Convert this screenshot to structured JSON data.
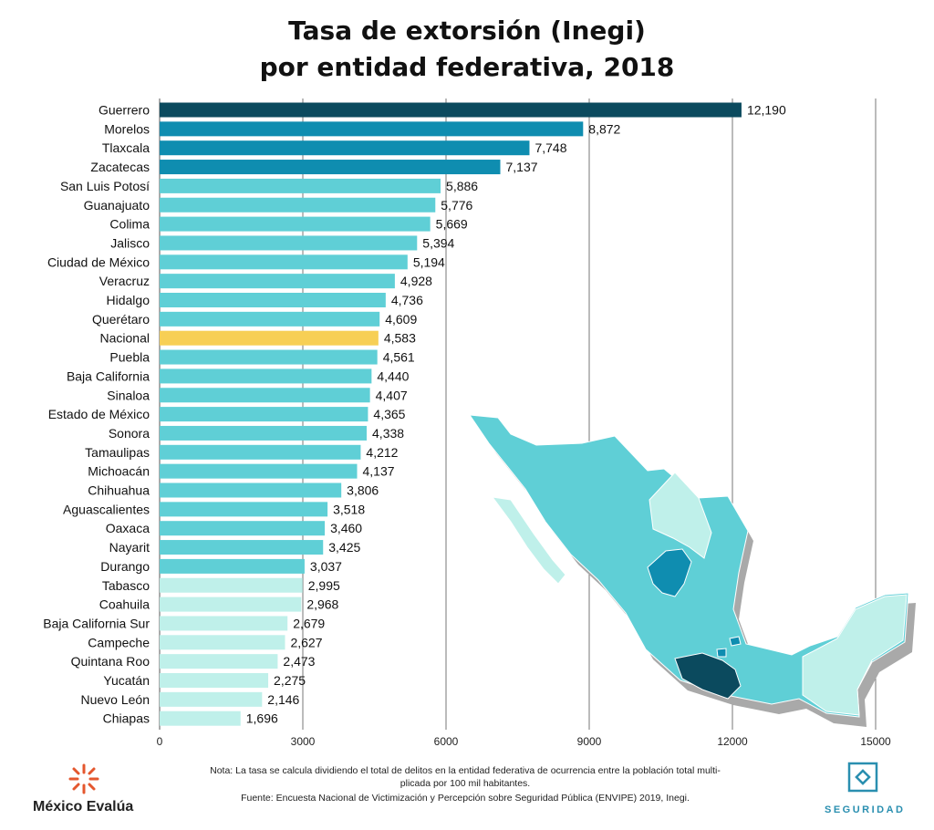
{
  "title_line1": "Tasa de extorsión (Inegi)",
  "title_line2": "por entidad federativa, 2018",
  "note_line1": "Nota: La tasa se calcula dividiendo el total de delitos en la entidad federativa de ocurrencia entre la población total multi-",
  "note_line2": "plicada por 100 mil habitantes.",
  "source": "Fuente: Encuesta Nacional de Victimización y Percepción sobre Seguridad Pública (ENVIPE) 2019, Inegi.",
  "brand_left": "México Evalúa",
  "brand_right": "SEGURIDAD",
  "icons": {
    "left_logo": "mexico-evalua-logo-icon",
    "right_logo": "seguridad-diamond-icon",
    "map": "mexico-map-icon"
  },
  "colors": {
    "darkest": "#0b4a5e",
    "dark": "#0f8db0",
    "mid": "#5fcfd6",
    "light": "#bff0ea",
    "highlight": "#f7cf55",
    "grid": "#555555"
  },
  "chart_data": {
    "type": "bar",
    "orientation": "horizontal",
    "title": "Tasa de extorsión (Inegi) por entidad federativa, 2018",
    "xlim": [
      0,
      15000
    ],
    "xticks": [
      0,
      3000,
      6000,
      9000,
      12000,
      15000
    ],
    "grid": true,
    "categories": [
      "Guerrero",
      "Morelos",
      "Tlaxcala",
      "Zacatecas",
      "San Luis Potosí",
      "Guanajuato",
      "Colima",
      "Jalisco",
      "Ciudad de México",
      "Veracruz",
      "Hidalgo",
      "Querétaro",
      "Nacional",
      "Puebla",
      "Baja California",
      "Sinaloa",
      "Estado de México",
      "Sonora",
      "Tamaulipas",
      "Michoacán",
      "Chihuahua",
      "Aguascalientes",
      "Oaxaca",
      "Nayarit",
      "Durango",
      "Tabasco",
      "Coahuila",
      "Baja California Sur",
      "Campeche",
      "Quintana Roo",
      "Yucatán",
      "Nuevo León",
      "Chiapas"
    ],
    "values": [
      12190,
      8872,
      7748,
      7137,
      5886,
      5776,
      5669,
      5394,
      5194,
      4928,
      4736,
      4609,
      4583,
      4561,
      4440,
      4407,
      4365,
      4338,
      4212,
      4137,
      3806,
      3518,
      3460,
      3425,
      3037,
      2995,
      2968,
      2679,
      2627,
      2473,
      2275,
      2146,
      1696
    ],
    "value_labels": [
      "12,190",
      "8,872",
      "7,748",
      "7,137",
      "5,886",
      "5,776",
      "5,669",
      "5,394",
      "5,194",
      "4,928",
      "4,736",
      "4,609",
      "4,583",
      "4,561",
      "4,440",
      "4,407",
      "4,365",
      "4,338",
      "4,212",
      "4,137",
      "3,806",
      "3,518",
      "3,460",
      "3,425",
      "3,037",
      "2,995",
      "2,968",
      "2,679",
      "2,627",
      "2,473",
      "2,275",
      "2,146",
      "1,696"
    ],
    "tiers": [
      "darkest",
      "dark",
      "dark",
      "dark",
      "mid",
      "mid",
      "mid",
      "mid",
      "mid",
      "mid",
      "mid",
      "mid",
      "highlight",
      "mid",
      "mid",
      "mid",
      "mid",
      "mid",
      "mid",
      "mid",
      "mid",
      "mid",
      "mid",
      "mid",
      "mid",
      "light",
      "light",
      "light",
      "light",
      "light",
      "light",
      "light",
      "light"
    ]
  }
}
